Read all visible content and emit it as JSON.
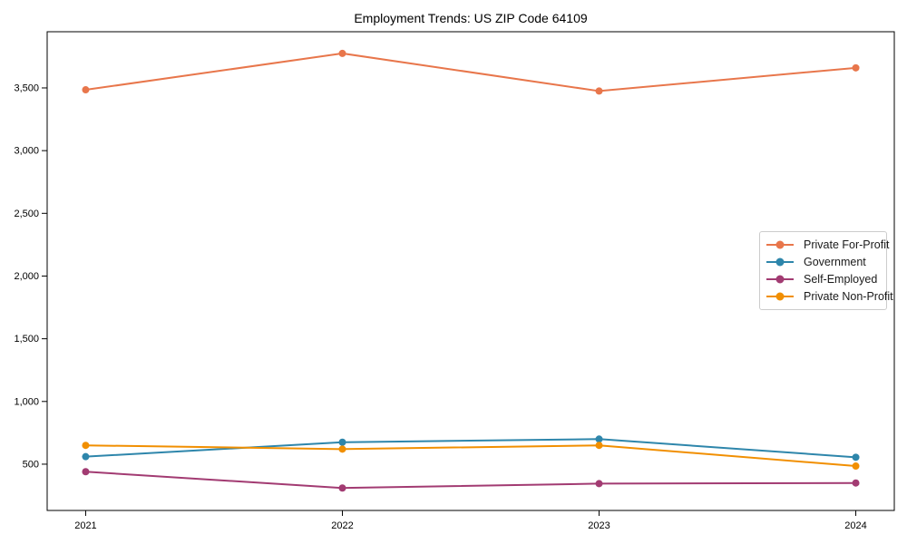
{
  "chart_data": {
    "type": "line",
    "title": "Employment Trends: US ZIP Code 64109",
    "categories": [
      "2021",
      "2022",
      "2023",
      "2024"
    ],
    "series": [
      {
        "name": "Private For-Profit",
        "color": "#E8764B",
        "values": [
          3485,
          3775,
          3475,
          3660
        ]
      },
      {
        "name": "Government",
        "color": "#2E86AB",
        "values": [
          560,
          675,
          700,
          555
        ]
      },
      {
        "name": "Self-Employed",
        "color": "#A23B72",
        "values": [
          440,
          310,
          345,
          350
        ]
      },
      {
        "name": "Private Non-Profit",
        "color": "#F18F01",
        "values": [
          650,
          620,
          650,
          485
        ]
      }
    ],
    "yticks": [
      500,
      1000,
      1500,
      2000,
      2500,
      3000,
      3500
    ],
    "ytick_labels": [
      "500",
      "1,000",
      "1,500",
      "2,000",
      "2,500",
      "3,000",
      "3,500"
    ],
    "ylim": [
      131,
      3948
    ],
    "x_margin_fraction": 0.15,
    "grid": false,
    "legend_position": "center-right",
    "marker": "circle",
    "axis_color": "#000000",
    "legend_border_color": "#cccccc",
    "background_color": "#ffffff"
  }
}
